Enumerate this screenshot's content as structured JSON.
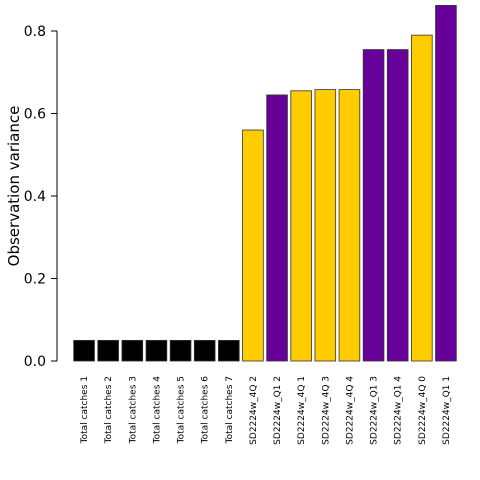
{
  "chart_data": {
    "type": "bar",
    "title": "",
    "xlabel": "",
    "ylabel": "Observation variance",
    "ylim": [
      0,
      0.85
    ],
    "yticks": [
      0.0,
      0.2,
      0.4,
      0.6,
      0.8
    ],
    "ytick_labels": [
      "0.0",
      "0.2",
      "0.4",
      "0.6",
      "0.8"
    ],
    "grid": false,
    "legend": "none",
    "categories": [
      "Total catches 1",
      "Total catches 2",
      "Total catches 3",
      "Total catches 4",
      "Total catches 5",
      "Total catches 6",
      "Total catches 7",
      "SD2224w_4Q 2",
      "SD2224w_Q1 2",
      "SD2224w_4Q 1",
      "SD2224w_4Q 3",
      "SD2224w_4Q 4",
      "SD2224w_Q1 3",
      "SD2224w_Q1 4",
      "SD2224w_4Q 0",
      "SD2224w_Q1 1"
    ],
    "values": [
      0.05,
      0.05,
      0.05,
      0.05,
      0.05,
      0.05,
      0.05,
      0.56,
      0.645,
      0.655,
      0.658,
      0.658,
      0.755,
      0.755,
      0.79,
      0.862
    ],
    "colors": [
      "#000000",
      "#000000",
      "#000000",
      "#000000",
      "#000000",
      "#000000",
      "#000000",
      "#FFCC00",
      "#660099",
      "#FFCC00",
      "#FFCC00",
      "#FFCC00",
      "#660099",
      "#660099",
      "#FFCC00",
      "#660099"
    ]
  }
}
